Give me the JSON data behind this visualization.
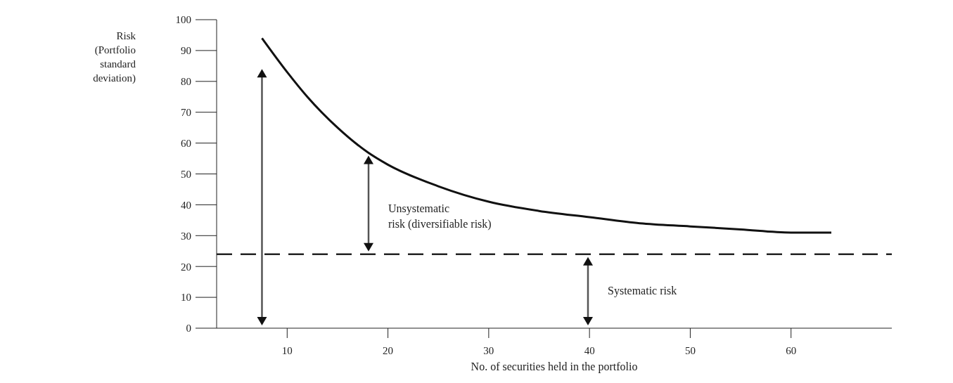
{
  "chart_data": {
    "type": "line",
    "xlabel": "No. of securities held in the portfolio",
    "ylabel": "Risk (Portfolio standard deviation)",
    "xlim": [
      3,
      70
    ],
    "xticks": [
      10,
      20,
      30,
      40,
      50,
      60
    ],
    "ylim": [
      0,
      100
    ],
    "yticks": [
      0,
      10,
      20,
      30,
      40,
      50,
      60,
      70,
      80,
      90,
      100
    ],
    "grid": false,
    "marker": "none",
    "line_style": "solid",
    "series": [
      {
        "color": "#111111",
        "x": [
          7.5,
          10,
          12,
          15,
          18,
          20,
          25,
          30,
          35,
          40,
          45,
          50,
          55,
          60,
          64
        ],
        "values": [
          94,
          83,
          75,
          65,
          57,
          53,
          46,
          41,
          38,
          36,
          34,
          33,
          32,
          31,
          31
        ]
      }
    ],
    "ref_lines": [
      {
        "axis": "y",
        "value": 24,
        "line_style": "dashed",
        "color": "#222222"
      }
    ],
    "annotations": [
      "Unsystematic risk (diversifiable risk)",
      "Systematic risk"
    ]
  }
}
